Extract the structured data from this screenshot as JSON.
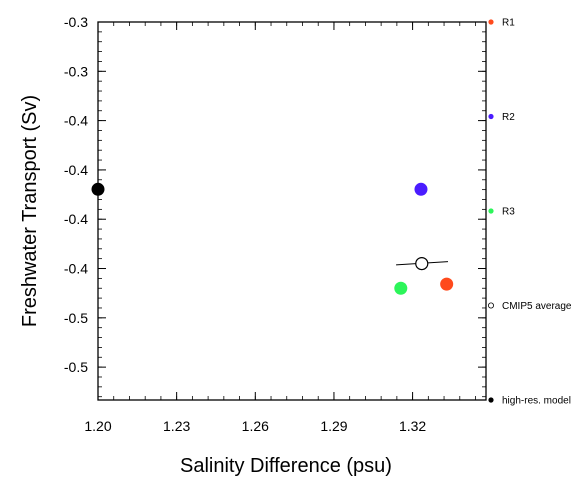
{
  "chart_data": {
    "type": "scatter",
    "xlabel": "Salinity Difference (psu)",
    "ylabel": "Freshwater Transport (Sv)",
    "xlim": [
      1.2,
      1.348
    ],
    "ylim": [
      -0.53,
      -0.3
    ],
    "x_ticks": [
      1.2,
      1.23,
      1.26,
      1.29,
      1.32
    ],
    "x_tick_labels": [
      "1.20",
      "1.23",
      "1.26",
      "1.29",
      "1.32"
    ],
    "y_ticks": [
      -0.3,
      -0.33,
      -0.36,
      -0.39,
      -0.42,
      -0.45,
      -0.48,
      -0.51
    ],
    "y_tick_labels": [
      "-0.3",
      "-0.3",
      "-0.4",
      "-0.4",
      "-0.4",
      "-0.4",
      "-0.5",
      "-0.5"
    ],
    "grid": false,
    "legend_position": "right",
    "series": [
      {
        "name": "R1",
        "color": "#ff4a1c",
        "x": 1.333,
        "y": -0.4595,
        "filled": true
      },
      {
        "name": "R2",
        "color": "#4a1cff",
        "x": 1.3232,
        "y": -0.4018,
        "filled": true
      },
      {
        "name": "R3",
        "color": "#2cf55a",
        "x": 1.3155,
        "y": -0.462,
        "filled": true
      },
      {
        "name": "CMIP5 average",
        "color": "#000000",
        "x": 1.3235,
        "y": -0.447,
        "filled": false,
        "errorbar": {
          "x_min": 1.3137,
          "x_max": 1.3335,
          "y_at_min": -0.4478,
          "y_at_max": -0.4458
        }
      },
      {
        "name": "high-res. model",
        "color": "#000000",
        "x": 1.2,
        "y": -0.4018,
        "filled": true
      }
    ]
  }
}
